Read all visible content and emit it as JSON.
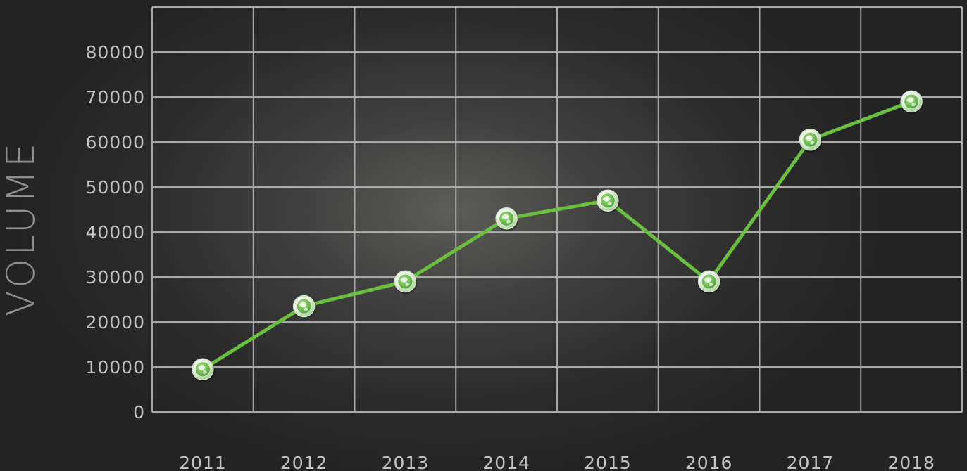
{
  "chart_data": {
    "type": "line",
    "title": "",
    "xlabel": "",
    "ylabel": "VOLUME",
    "categories": [
      "2011",
      "2012",
      "2013",
      "2014",
      "2015",
      "2016",
      "2017",
      "2018"
    ],
    "series": [
      {
        "values": [
          9500,
          23500,
          29000,
          43000,
          47000,
          29000,
          60500,
          69000
        ]
      }
    ],
    "ylim": [
      0,
      90000
    ],
    "yticks": [
      "0",
      "10000",
      "20000",
      "30000",
      "40000",
      "50000",
      "60000",
      "70000",
      "80000"
    ],
    "grid": true,
    "colors": {
      "line": "#6abf3f",
      "grid": "#a8a8a8",
      "marker_fill": "#ffffff",
      "marker_inner": "#5fb83a",
      "background": "#2a2a2a"
    },
    "marker_icon": "globe-leaf-icon"
  }
}
